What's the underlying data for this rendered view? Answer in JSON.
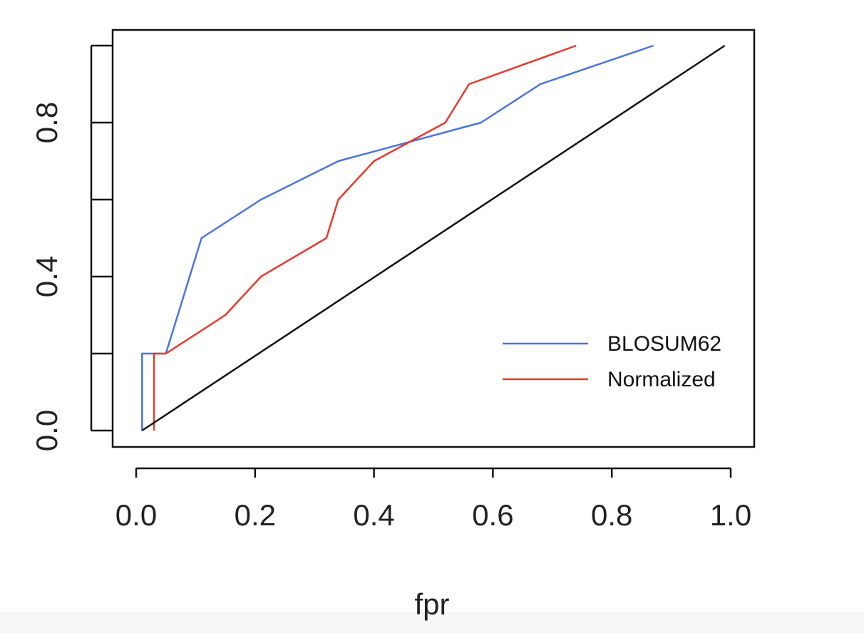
{
  "chart_data": {
    "type": "line",
    "xlabel": "fpr",
    "ylabel": "",
    "xlim": [
      0.0,
      1.0
    ],
    "ylim": [
      0.0,
      1.0
    ],
    "x_ticks": [
      "0.0",
      "0.2",
      "0.4",
      "0.6",
      "0.8",
      "1.0"
    ],
    "y_ticks": [
      "0.0",
      "0.4",
      "0.8"
    ],
    "y_tick_values": [
      0.0,
      0.2,
      0.4,
      0.6,
      0.8,
      1.0
    ],
    "grid": false,
    "legend_position": "bottom-right",
    "series": [
      {
        "name": "BLOSUM62",
        "color": "#4a74dc",
        "x": [
          0.01,
          0.01,
          0.05,
          0.11,
          0.21,
          0.34,
          0.58,
          0.68,
          0.87
        ],
        "y": [
          0.0,
          0.2,
          0.2,
          0.5,
          0.6,
          0.7,
          0.8,
          0.9,
          1.0
        ]
      },
      {
        "name": "Normalized",
        "color": "#e43a2e",
        "x": [
          0.03,
          0.03,
          0.05,
          0.15,
          0.21,
          0.32,
          0.34,
          0.4,
          0.52,
          0.56,
          0.74
        ],
        "y": [
          0.0,
          0.2,
          0.2,
          0.3,
          0.4,
          0.5,
          0.6,
          0.7,
          0.8,
          0.9,
          1.0
        ]
      },
      {
        "color": "#111111",
        "x": [
          0.01,
          0.99
        ],
        "y": [
          0.0,
          1.0
        ]
      }
    ]
  }
}
